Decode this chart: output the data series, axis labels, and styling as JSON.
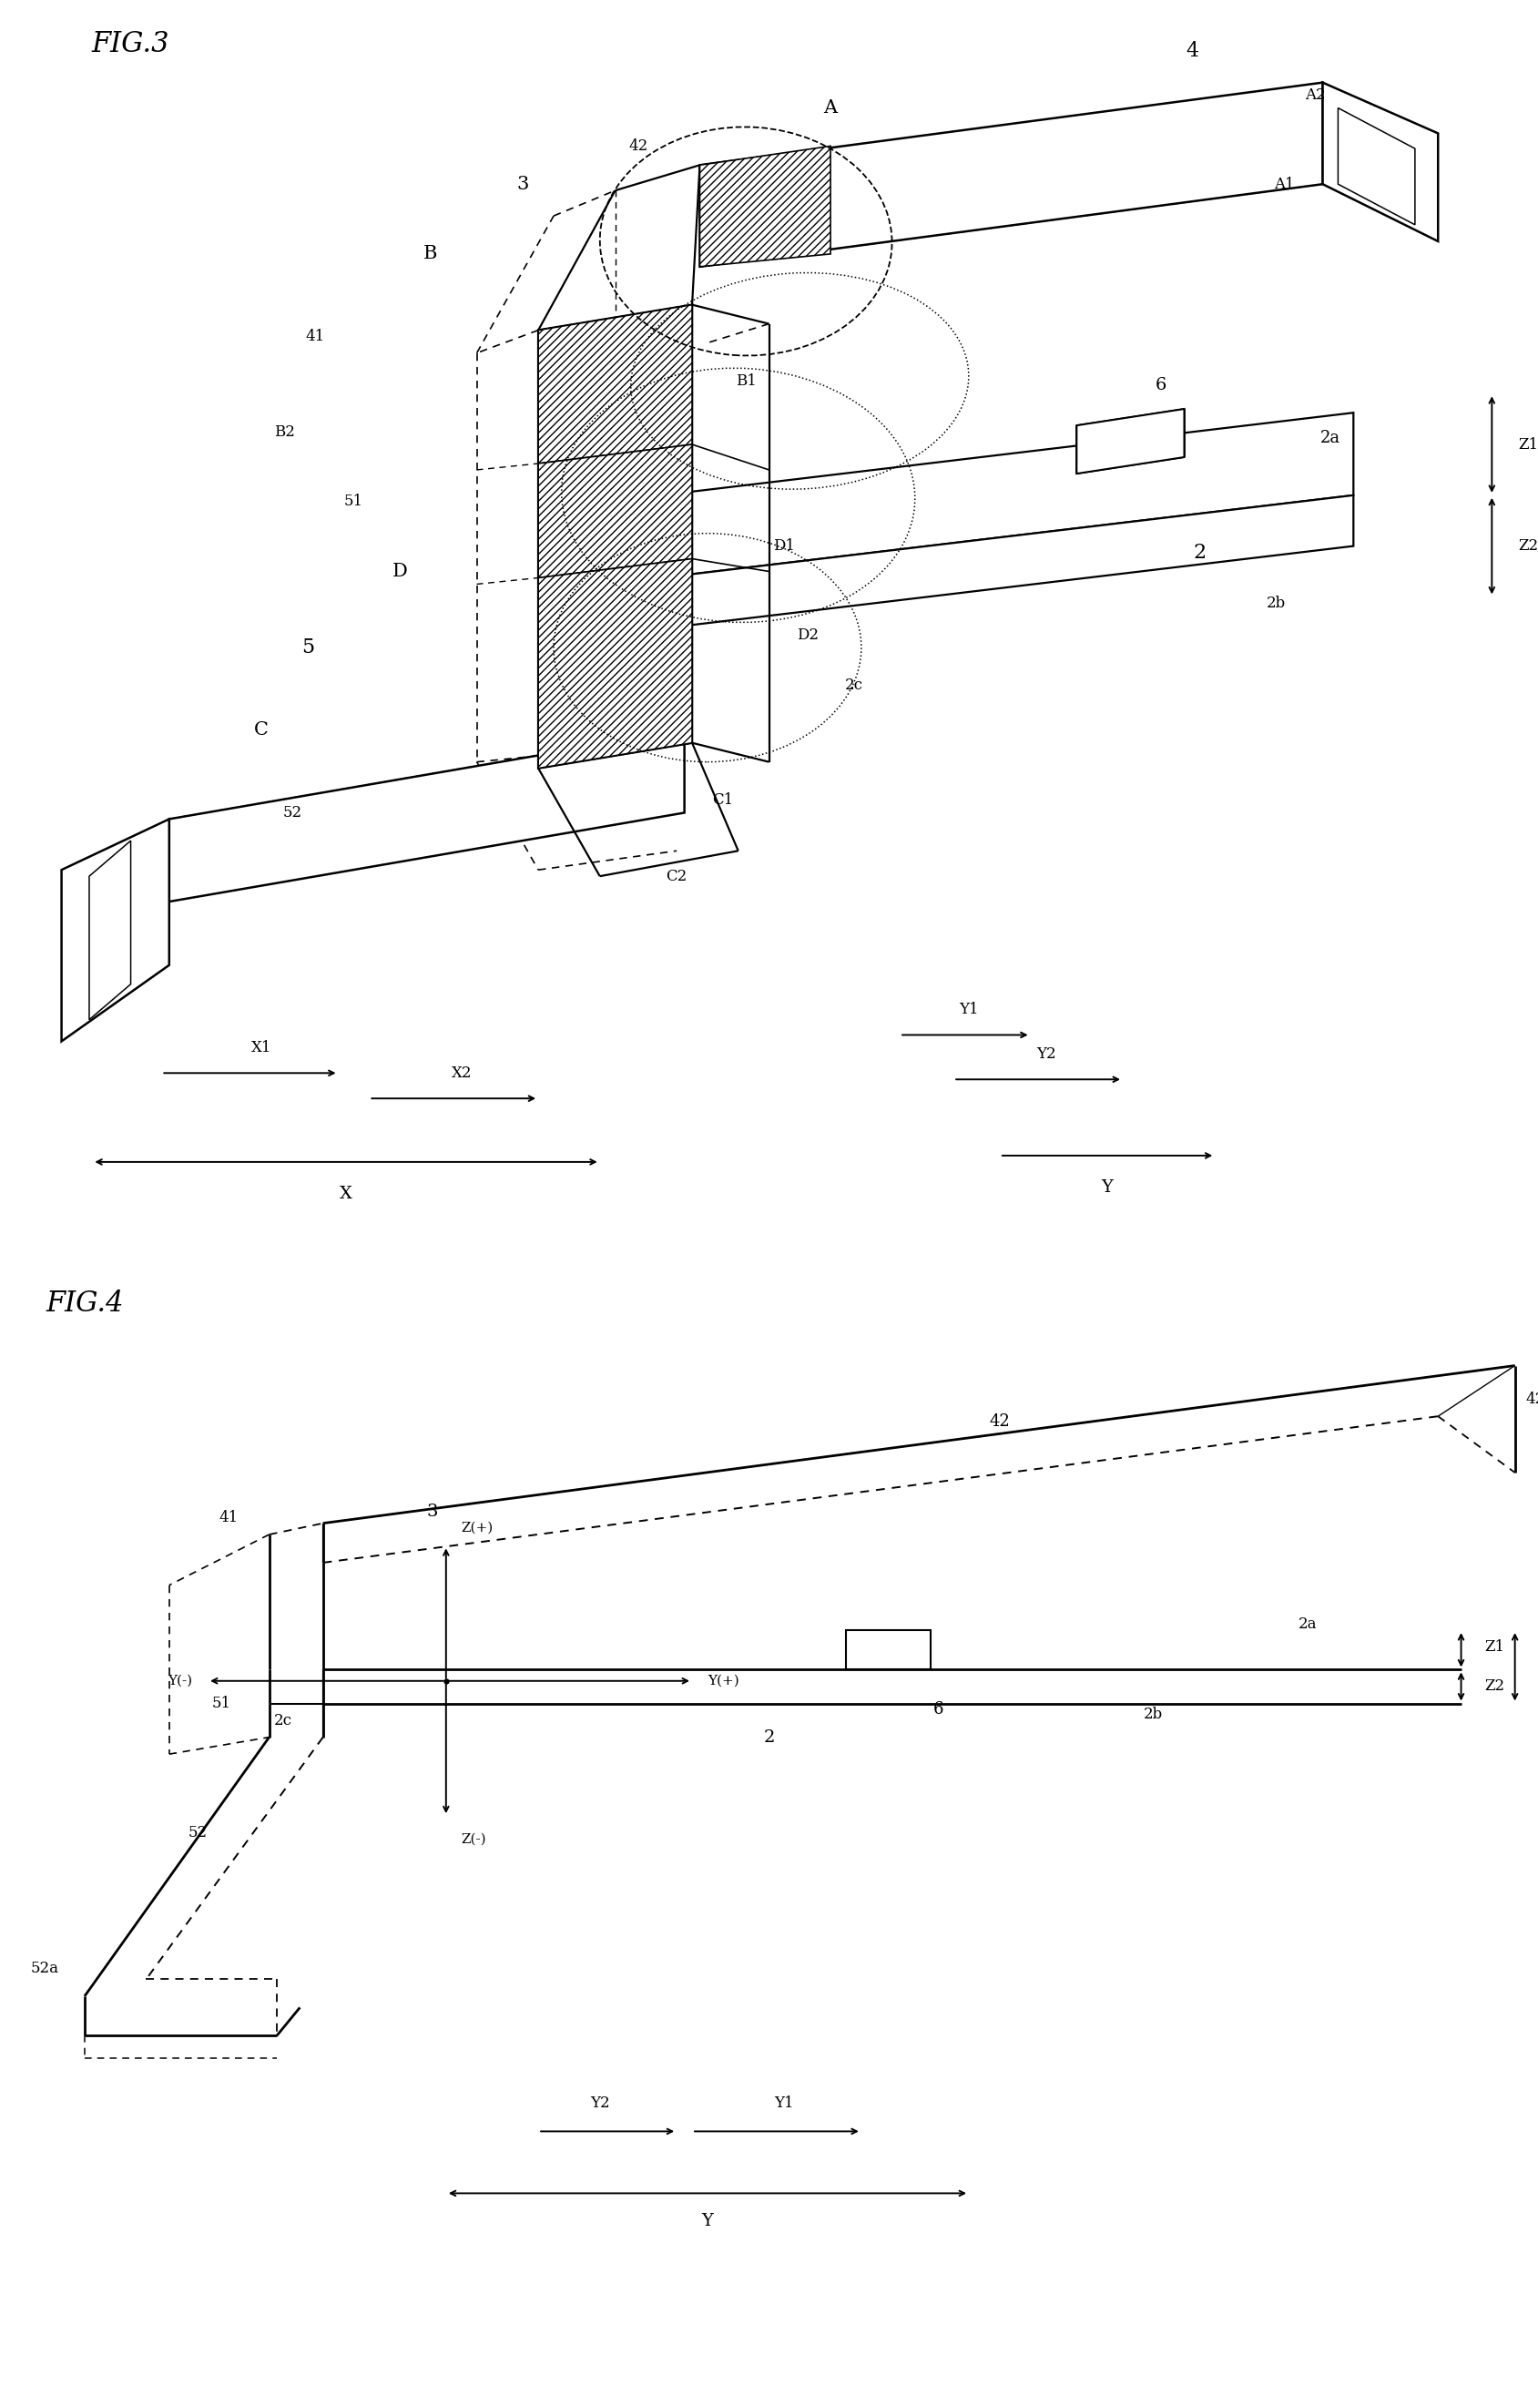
{
  "fig_width": 16.89,
  "fig_height": 26.31,
  "bg_color": "#ffffff",
  "fig3_label": "FIG.3",
  "fig4_label": "FIG.4"
}
